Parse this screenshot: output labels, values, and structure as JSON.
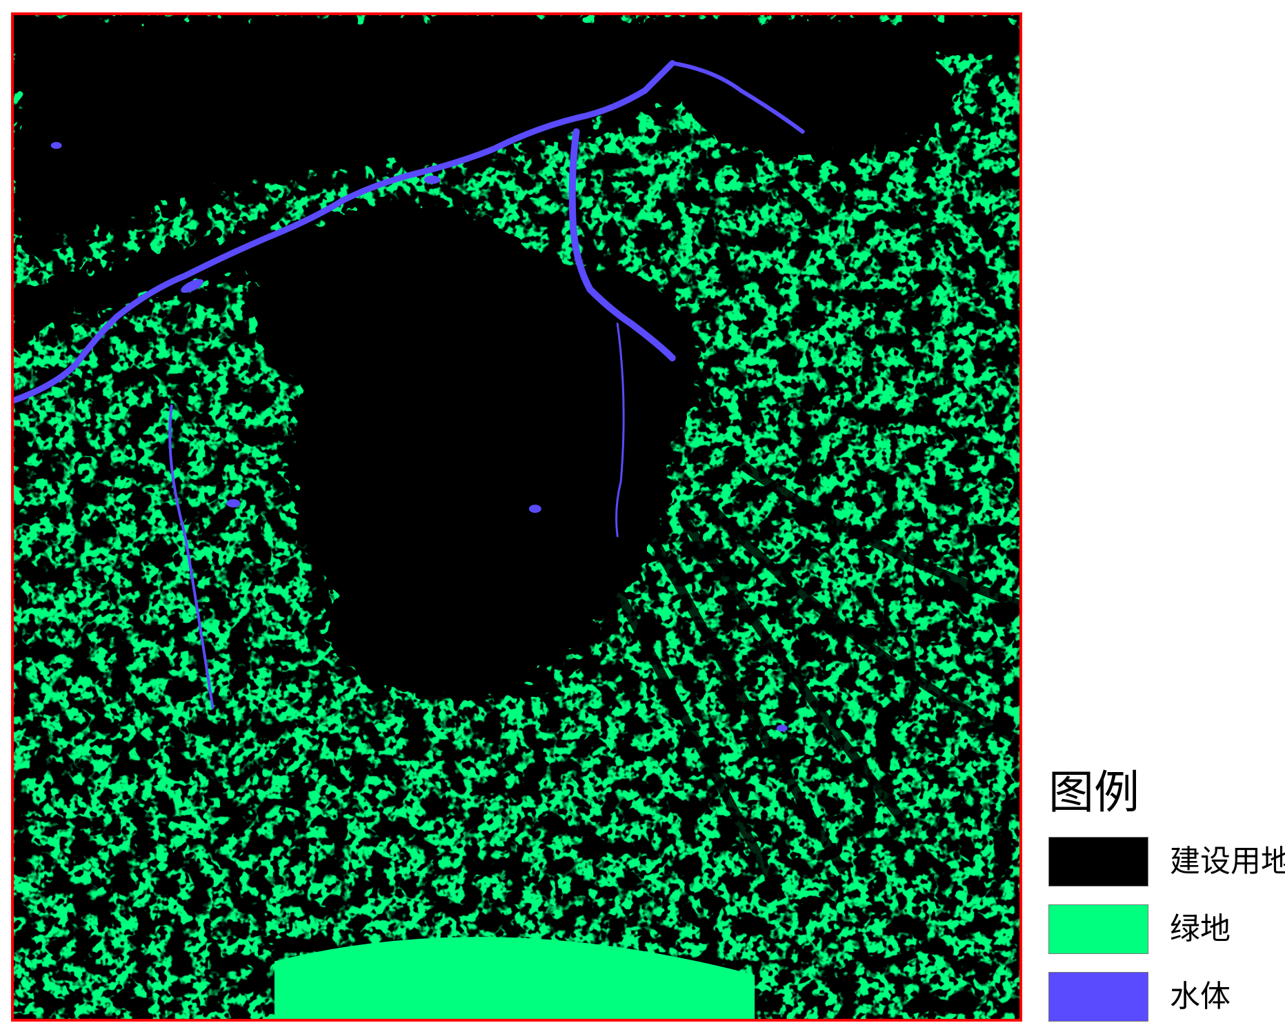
{
  "legend": {
    "title": "图例",
    "items": [
      {
        "label": "建设用地",
        "color": "#000000"
      },
      {
        "label": "绿地",
        "color": "#00ff7f"
      },
      {
        "label": "水体",
        "color": "#5a4bff"
      }
    ]
  },
  "colors": {
    "frame": "#ff0000",
    "built": "#000000",
    "green": "#00ff7f",
    "water": "#5a4bff"
  }
}
